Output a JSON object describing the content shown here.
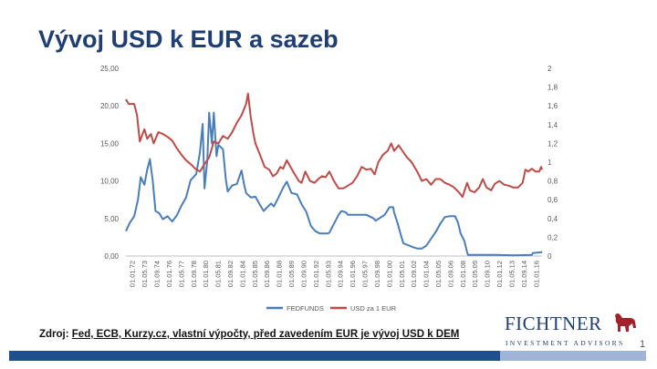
{
  "slide": {
    "title": "Vývoj USD k EUR a sazeb",
    "source_label": "Zdroj",
    "source_text": "Fed, ECB, Kurzy.cz, vlastní výpočty, před zavedením EUR je vývoj USD k DEM",
    "logo_name": "FICHTNER",
    "logo_sub": "INVESTMENT ADVISORS",
    "page_number": "1"
  },
  "colors": {
    "title": "#1f3f73",
    "fedfunds": "#4a7ebb",
    "usd": "#be4b48",
    "bar_dark": "#1f4f8f",
    "bar_light": "#9fb4d6"
  },
  "chart_data": {
    "type": "line",
    "title": "",
    "xlabel": "",
    "ylabel": "",
    "x_tick_labels": [
      "01.01.72",
      "01.05.73",
      "01.09.74",
      "01.01.76",
      "01.05.77",
      "01.09.78",
      "01.01.80",
      "01.05.81",
      "01.09.82",
      "01.01.84",
      "01.05.85",
      "01.09.86",
      "01.01.88",
      "01.05.89",
      "01.09.90",
      "01.01.92",
      "01.05.93",
      "01.09.94",
      "01.01.96",
      "01.05.97",
      "01.09.98",
      "01.01.00",
      "01.05.01",
      "01.09.02",
      "01.01.04",
      "01.05.05",
      "01.09.06",
      "01.01.08",
      "01.05.09",
      "01.09.10",
      "01.01.12",
      "01.05.13",
      "01.09.14",
      "01.01.16"
    ],
    "y_left": {
      "ylim": [
        0,
        25
      ],
      "ticks": [
        "0,00",
        "5,00",
        "10,00",
        "15,00",
        "20,00",
        "25,00"
      ]
    },
    "y_right": {
      "ylim": [
        0,
        2
      ],
      "ticks": [
        "0",
        "0,2",
        "0,4",
        "0,6",
        "0,8",
        "1",
        "1,2",
        "1,4",
        "1,6",
        "1,8",
        "2"
      ]
    },
    "grid": false,
    "legend_position": "bottom",
    "series": [
      {
        "name": "FEDFUNDS",
        "axis": "left",
        "points": [
          [
            1972.0,
            3.3
          ],
          [
            1972.4,
            4.4
          ],
          [
            1972.9,
            5.3
          ],
          [
            1973.3,
            7.5
          ],
          [
            1973.6,
            10.5
          ],
          [
            1974.0,
            9.5
          ],
          [
            1974.3,
            11.5
          ],
          [
            1974.6,
            12.9
          ],
          [
            1974.9,
            10.0
          ],
          [
            1975.2,
            6.0
          ],
          [
            1975.6,
            5.7
          ],
          [
            1976.0,
            4.9
          ],
          [
            1976.5,
            5.3
          ],
          [
            1977.0,
            4.6
          ],
          [
            1977.5,
            5.4
          ],
          [
            1978.0,
            6.7
          ],
          [
            1978.5,
            7.8
          ],
          [
            1979.0,
            10.1
          ],
          [
            1979.6,
            10.9
          ],
          [
            1980.0,
            13.8
          ],
          [
            1980.3,
            17.6
          ],
          [
            1980.5,
            9.0
          ],
          [
            1980.8,
            12.8
          ],
          [
            1981.0,
            19.1
          ],
          [
            1981.3,
            15.0
          ],
          [
            1981.5,
            19.1
          ],
          [
            1981.8,
            13.3
          ],
          [
            1982.0,
            14.8
          ],
          [
            1982.5,
            14.2
          ],
          [
            1982.8,
            10.3
          ],
          [
            1983.0,
            8.6
          ],
          [
            1983.5,
            9.4
          ],
          [
            1984.0,
            9.6
          ],
          [
            1984.5,
            11.4
          ],
          [
            1984.8,
            9.4
          ],
          [
            1985.0,
            8.4
          ],
          [
            1985.5,
            7.8
          ],
          [
            1986.0,
            7.9
          ],
          [
            1986.5,
            6.8
          ],
          [
            1986.9,
            6.0
          ],
          [
            1987.2,
            6.4
          ],
          [
            1987.7,
            7.0
          ],
          [
            1988.0,
            6.6
          ],
          [
            1988.5,
            7.8
          ],
          [
            1989.0,
            9.1
          ],
          [
            1989.4,
            9.9
          ],
          [
            1989.9,
            8.4
          ],
          [
            1990.5,
            8.2
          ],
          [
            1991.0,
            6.9
          ],
          [
            1991.5,
            5.9
          ],
          [
            1992.0,
            4.0
          ],
          [
            1992.5,
            3.3
          ],
          [
            1993.0,
            3.0
          ],
          [
            1993.8,
            3.0
          ],
          [
            1994.0,
            3.1
          ],
          [
            1994.5,
            4.3
          ],
          [
            1995.0,
            5.5
          ],
          [
            1995.3,
            6.0
          ],
          [
            1995.8,
            5.8
          ],
          [
            1996.0,
            5.5
          ],
          [
            1997.0,
            5.5
          ],
          [
            1998.0,
            5.5
          ],
          [
            1998.8,
            5.0
          ],
          [
            1999.0,
            4.7
          ],
          [
            1999.5,
            5.1
          ],
          [
            2000.0,
            5.5
          ],
          [
            2000.5,
            6.5
          ],
          [
            2000.9,
            6.5
          ],
          [
            2001.0,
            5.8
          ],
          [
            2001.4,
            4.3
          ],
          [
            2001.8,
            2.5
          ],
          [
            2002.0,
            1.7
          ],
          [
            2003.0,
            1.2
          ],
          [
            2003.5,
            1.0
          ],
          [
            2004.0,
            1.0
          ],
          [
            2004.5,
            1.4
          ],
          [
            2005.0,
            2.3
          ],
          [
            2005.5,
            3.2
          ],
          [
            2006.0,
            4.3
          ],
          [
            2006.5,
            5.2
          ],
          [
            2007.0,
            5.3
          ],
          [
            2007.6,
            5.3
          ],
          [
            2007.9,
            4.5
          ],
          [
            2008.2,
            3.0
          ],
          [
            2008.6,
            2.0
          ],
          [
            2008.9,
            0.5
          ],
          [
            2009.0,
            0.15
          ],
          [
            2010.0,
            0.15
          ],
          [
            2012.0,
            0.15
          ],
          [
            2014.0,
            0.1
          ],
          [
            2015.9,
            0.15
          ],
          [
            2016.0,
            0.4
          ],
          [
            2016.9,
            0.5
          ],
          [
            2017.0,
            0.6
          ]
        ]
      },
      {
        "name": "USD za 1 EUR",
        "axis": "right",
        "points": [
          [
            1972.0,
            1.67
          ],
          [
            1972.3,
            1.62
          ],
          [
            1972.9,
            1.62
          ],
          [
            1973.2,
            1.5
          ],
          [
            1973.5,
            1.22
          ],
          [
            1973.8,
            1.3
          ],
          [
            1974.0,
            1.35
          ],
          [
            1974.3,
            1.25
          ],
          [
            1974.7,
            1.3
          ],
          [
            1975.0,
            1.2
          ],
          [
            1975.5,
            1.32
          ],
          [
            1976.0,
            1.3
          ],
          [
            1976.5,
            1.27
          ],
          [
            1977.0,
            1.23
          ],
          [
            1977.5,
            1.15
          ],
          [
            1978.0,
            1.08
          ],
          [
            1978.5,
            1.02
          ],
          [
            1979.0,
            0.98
          ],
          [
            1979.5,
            0.93
          ],
          [
            1980.0,
            0.9
          ],
          [
            1980.5,
            0.98
          ],
          [
            1981.0,
            1.05
          ],
          [
            1981.5,
            1.22
          ],
          [
            1982.0,
            1.2
          ],
          [
            1982.5,
            1.28
          ],
          [
            1983.0,
            1.25
          ],
          [
            1983.5,
            1.32
          ],
          [
            1984.0,
            1.42
          ],
          [
            1984.5,
            1.5
          ],
          [
            1985.0,
            1.62
          ],
          [
            1985.2,
            1.73
          ],
          [
            1985.5,
            1.48
          ],
          [
            1985.8,
            1.3
          ],
          [
            1986.0,
            1.2
          ],
          [
            1986.5,
            1.08
          ],
          [
            1987.0,
            0.95
          ],
          [
            1987.5,
            0.92
          ],
          [
            1987.9,
            0.85
          ],
          [
            1988.3,
            0.88
          ],
          [
            1988.7,
            0.95
          ],
          [
            1989.0,
            0.93
          ],
          [
            1989.4,
            1.02
          ],
          [
            1989.8,
            0.95
          ],
          [
            1990.2,
            0.88
          ],
          [
            1990.7,
            0.8
          ],
          [
            1991.0,
            0.78
          ],
          [
            1991.4,
            0.9
          ],
          [
            1991.9,
            0.8
          ],
          [
            1992.4,
            0.78
          ],
          [
            1992.8,
            0.82
          ],
          [
            1993.2,
            0.85
          ],
          [
            1993.6,
            0.84
          ],
          [
            1994.0,
            0.9
          ],
          [
            1994.5,
            0.8
          ],
          [
            1995.0,
            0.72
          ],
          [
            1995.5,
            0.72
          ],
          [
            1996.0,
            0.75
          ],
          [
            1996.5,
            0.78
          ],
          [
            1997.0,
            0.85
          ],
          [
            1997.5,
            0.95
          ],
          [
            1998.0,
            0.92
          ],
          [
            1998.5,
            0.93
          ],
          [
            1998.9,
            0.87
          ],
          [
            1999.3,
            1.0
          ],
          [
            1999.8,
            1.08
          ],
          [
            2000.3,
            1.12
          ],
          [
            2000.7,
            1.2
          ],
          [
            2001.0,
            1.12
          ],
          [
            2001.5,
            1.18
          ],
          [
            2001.9,
            1.12
          ],
          [
            2002.4,
            1.05
          ],
          [
            2002.9,
            1.0
          ],
          [
            2003.5,
            0.9
          ],
          [
            2004.0,
            0.8
          ],
          [
            2004.5,
            0.82
          ],
          [
            2005.0,
            0.76
          ],
          [
            2005.5,
            0.82
          ],
          [
            2006.0,
            0.82
          ],
          [
            2006.5,
            0.78
          ],
          [
            2007.0,
            0.76
          ],
          [
            2007.5,
            0.73
          ],
          [
            2008.0,
            0.68
          ],
          [
            2008.4,
            0.63
          ],
          [
            2008.9,
            0.78
          ],
          [
            2009.2,
            0.7
          ],
          [
            2009.7,
            0.68
          ],
          [
            2010.2,
            0.73
          ],
          [
            2010.6,
            0.82
          ],
          [
            2011.0,
            0.73
          ],
          [
            2011.5,
            0.7
          ],
          [
            2011.9,
            0.77
          ],
          [
            2012.4,
            0.8
          ],
          [
            2012.9,
            0.76
          ],
          [
            2013.4,
            0.75
          ],
          [
            2013.9,
            0.73
          ],
          [
            2014.4,
            0.73
          ],
          [
            2014.9,
            0.78
          ],
          [
            2015.2,
            0.92
          ],
          [
            2015.5,
            0.9
          ],
          [
            2015.9,
            0.93
          ],
          [
            2016.3,
            0.9
          ],
          [
            2016.7,
            0.9
          ],
          [
            2016.9,
            0.95
          ],
          [
            2017.0,
            0.92
          ]
        ]
      }
    ]
  }
}
